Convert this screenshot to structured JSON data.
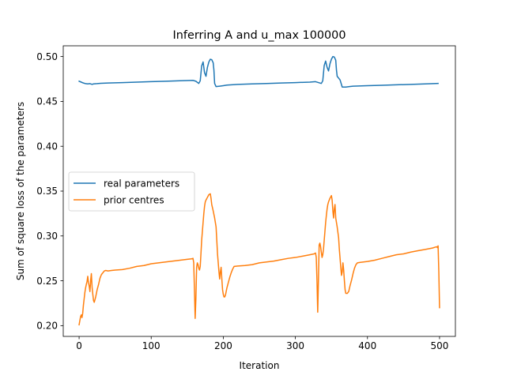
{
  "chart_data": {
    "type": "line",
    "title": "Inferring A and u_max 100000",
    "xlabel": "Iteration",
    "ylabel": "Sum of square loss of the parameters",
    "xlim": [
      -22,
      522
    ],
    "ylim": [
      0.188,
      0.512
    ],
    "xticks": [
      0,
      100,
      200,
      300,
      400,
      500
    ],
    "xtick_labels": [
      "0",
      "100",
      "200",
      "300",
      "400",
      "500"
    ],
    "yticks": [
      0.2,
      0.25,
      0.3,
      0.35,
      0.4,
      0.45,
      0.5
    ],
    "ytick_labels": [
      "0.20",
      "0.25",
      "0.30",
      "0.35",
      "0.40",
      "0.45",
      "0.50"
    ],
    "grid": false,
    "legend_position": "center-left",
    "series": [
      {
        "name": "real parameters",
        "color": "#1f77b4",
        "points": [
          [
            0,
            0.4725
          ],
          [
            3,
            0.4715
          ],
          [
            6,
            0.4705
          ],
          [
            9,
            0.4698
          ],
          [
            12,
            0.4695
          ],
          [
            15,
            0.4698
          ],
          [
            18,
            0.469
          ],
          [
            20,
            0.4695
          ],
          [
            25,
            0.4698
          ],
          [
            30,
            0.4702
          ],
          [
            40,
            0.4705
          ],
          [
            60,
            0.471
          ],
          [
            80,
            0.4715
          ],
          [
            100,
            0.472
          ],
          [
            120,
            0.4725
          ],
          [
            140,
            0.473
          ],
          [
            158,
            0.4735
          ],
          [
            162,
            0.4725
          ],
          [
            166,
            0.47
          ],
          [
            168,
            0.473
          ],
          [
            170,
            0.4895
          ],
          [
            172,
            0.494
          ],
          [
            174,
            0.482
          ],
          [
            176,
            0.478
          ],
          [
            178,
            0.488
          ],
          [
            180,
            0.494
          ],
          [
            182,
            0.497
          ],
          [
            184,
            0.4965
          ],
          [
            186,
            0.493
          ],
          [
            187,
            0.485
          ],
          [
            188,
            0.47
          ],
          [
            190,
            0.4665
          ],
          [
            195,
            0.467
          ],
          [
            200,
            0.4675
          ],
          [
            205,
            0.4682
          ],
          [
            220,
            0.469
          ],
          [
            240,
            0.4695
          ],
          [
            260,
            0.47
          ],
          [
            280,
            0.4705
          ],
          [
            300,
            0.471
          ],
          [
            320,
            0.4715
          ],
          [
            328,
            0.472
          ],
          [
            332,
            0.471
          ],
          [
            336,
            0.47
          ],
          [
            338,
            0.473
          ],
          [
            340,
            0.49
          ],
          [
            342,
            0.495
          ],
          [
            344,
            0.488
          ],
          [
            346,
            0.484
          ],
          [
            348,
            0.492
          ],
          [
            350,
            0.497
          ],
          [
            352,
            0.5
          ],
          [
            354,
            0.4995
          ],
          [
            356,
            0.496
          ],
          [
            357,
            0.485
          ],
          [
            358,
            0.478
          ],
          [
            362,
            0.474
          ],
          [
            365,
            0.466
          ],
          [
            370,
            0.466
          ],
          [
            375,
            0.4665
          ],
          [
            380,
            0.467
          ],
          [
            400,
            0.4675
          ],
          [
            420,
            0.468
          ],
          [
            440,
            0.4685
          ],
          [
            460,
            0.469
          ],
          [
            480,
            0.4695
          ],
          [
            498,
            0.47
          ]
        ]
      },
      {
        "name": "prior centres",
        "color": "#ff7f0e",
        "points": [
          [
            0,
            0.201
          ],
          [
            2,
            0.21
          ],
          [
            3,
            0.212
          ],
          [
            4,
            0.209
          ],
          [
            5,
            0.214
          ],
          [
            6,
            0.223
          ],
          [
            7,
            0.23
          ],
          [
            8,
            0.237
          ],
          [
            9,
            0.242
          ],
          [
            10,
            0.246
          ],
          [
            11,
            0.249
          ],
          [
            12,
            0.255
          ],
          [
            13,
            0.248
          ],
          [
            14,
            0.244
          ],
          [
            15,
            0.238
          ],
          [
            16,
            0.25
          ],
          [
            17,
            0.258
          ],
          [
            18,
            0.243
          ],
          [
            19,
            0.235
          ],
          [
            20,
            0.228
          ],
          [
            21,
            0.226
          ],
          [
            23,
            0.232
          ],
          [
            25,
            0.24
          ],
          [
            27,
            0.246
          ],
          [
            29,
            0.253
          ],
          [
            31,
            0.257
          ],
          [
            33,
            0.259
          ],
          [
            35,
            0.261
          ],
          [
            37,
            0.2615
          ],
          [
            40,
            0.261
          ],
          [
            45,
            0.2615
          ],
          [
            50,
            0.262
          ],
          [
            60,
            0.2625
          ],
          [
            70,
            0.264
          ],
          [
            80,
            0.266
          ],
          [
            90,
            0.267
          ],
          [
            100,
            0.269
          ],
          [
            110,
            0.27
          ],
          [
            120,
            0.271
          ],
          [
            130,
            0.272
          ],
          [
            140,
            0.273
          ],
          [
            150,
            0.274
          ],
          [
            156,
            0.2745
          ],
          [
            158,
            0.275
          ],
          [
            159,
            0.27
          ],
          [
            160,
            0.24
          ],
          [
            161,
            0.208
          ],
          [
            162,
            0.23
          ],
          [
            163,
            0.265
          ],
          [
            164,
            0.27
          ],
          [
            165,
            0.268
          ],
          [
            166,
            0.264
          ],
          [
            167,
            0.262
          ],
          [
            168,
            0.266
          ],
          [
            169,
            0.28
          ],
          [
            170,
            0.295
          ],
          [
            171,
            0.305
          ],
          [
            172,
            0.315
          ],
          [
            173,
            0.325
          ],
          [
            174,
            0.333
          ],
          [
            175,
            0.338
          ],
          [
            176,
            0.34
          ],
          [
            178,
            0.343
          ],
          [
            180,
            0.346
          ],
          [
            182,
            0.347
          ],
          [
            183,
            0.342
          ],
          [
            184,
            0.335
          ],
          [
            186,
            0.328
          ],
          [
            188,
            0.32
          ],
          [
            190,
            0.31
          ],
          [
            191,
            0.295
          ],
          [
            192,
            0.28
          ],
          [
            193,
            0.27
          ],
          [
            194,
            0.26
          ],
          [
            195,
            0.252
          ],
          [
            196,
            0.26
          ],
          [
            197,
            0.265
          ],
          [
            198,
            0.252
          ],
          [
            199,
            0.24
          ],
          [
            200,
            0.235
          ],
          [
            201,
            0.232
          ],
          [
            202,
            0.232
          ],
          [
            203,
            0.234
          ],
          [
            205,
            0.242
          ],
          [
            207,
            0.248
          ],
          [
            209,
            0.254
          ],
          [
            211,
            0.259
          ],
          [
            213,
            0.263
          ],
          [
            215,
            0.266
          ],
          [
            220,
            0.2665
          ],
          [
            230,
            0.267
          ],
          [
            240,
            0.268
          ],
          [
            250,
            0.27
          ],
          [
            260,
            0.271
          ],
          [
            270,
            0.272
          ],
          [
            280,
            0.2735
          ],
          [
            290,
            0.275
          ],
          [
            300,
            0.276
          ],
          [
            310,
            0.2775
          ],
          [
            320,
            0.279
          ],
          [
            326,
            0.28
          ],
          [
            328,
            0.281
          ],
          [
            329,
            0.276
          ],
          [
            330,
            0.25
          ],
          [
            331,
            0.215
          ],
          [
            332,
            0.25
          ],
          [
            333,
            0.29
          ],
          [
            334,
            0.292
          ],
          [
            335,
            0.288
          ],
          [
            336,
            0.282
          ],
          [
            337,
            0.276
          ],
          [
            338,
            0.279
          ],
          [
            339,
            0.285
          ],
          [
            340,
            0.295
          ],
          [
            341,
            0.305
          ],
          [
            342,
            0.315
          ],
          [
            343,
            0.323
          ],
          [
            344,
            0.33
          ],
          [
            345,
            0.335
          ],
          [
            346,
            0.338
          ],
          [
            348,
            0.342
          ],
          [
            350,
            0.345
          ],
          [
            351,
            0.34
          ],
          [
            352,
            0.328
          ],
          [
            353,
            0.32
          ],
          [
            354,
            0.33
          ],
          [
            355,
            0.335
          ],
          [
            356,
            0.32
          ],
          [
            358,
            0.31
          ],
          [
            360,
            0.298
          ],
          [
            361,
            0.285
          ],
          [
            362,
            0.275
          ],
          [
            363,
            0.265
          ],
          [
            364,
            0.256
          ],
          [
            365,
            0.26
          ],
          [
            366,
            0.27
          ],
          [
            367,
            0.262
          ],
          [
            368,
            0.25
          ],
          [
            369,
            0.24
          ],
          [
            370,
            0.236
          ],
          [
            372,
            0.236
          ],
          [
            374,
            0.238
          ],
          [
            376,
            0.245
          ],
          [
            378,
            0.251
          ],
          [
            380,
            0.258
          ],
          [
            382,
            0.264
          ],
          [
            384,
            0.268
          ],
          [
            386,
            0.27
          ],
          [
            390,
            0.2705
          ],
          [
            400,
            0.2715
          ],
          [
            410,
            0.273
          ],
          [
            420,
            0.275
          ],
          [
            430,
            0.277
          ],
          [
            440,
            0.279
          ],
          [
            450,
            0.28
          ],
          [
            460,
            0.282
          ],
          [
            470,
            0.2835
          ],
          [
            480,
            0.285
          ],
          [
            490,
            0.2865
          ],
          [
            496,
            0.288
          ],
          [
            497,
            0.287
          ],
          [
            498,
            0.289
          ],
          [
            499,
            0.26
          ],
          [
            500,
            0.22
          ]
        ]
      }
    ]
  }
}
